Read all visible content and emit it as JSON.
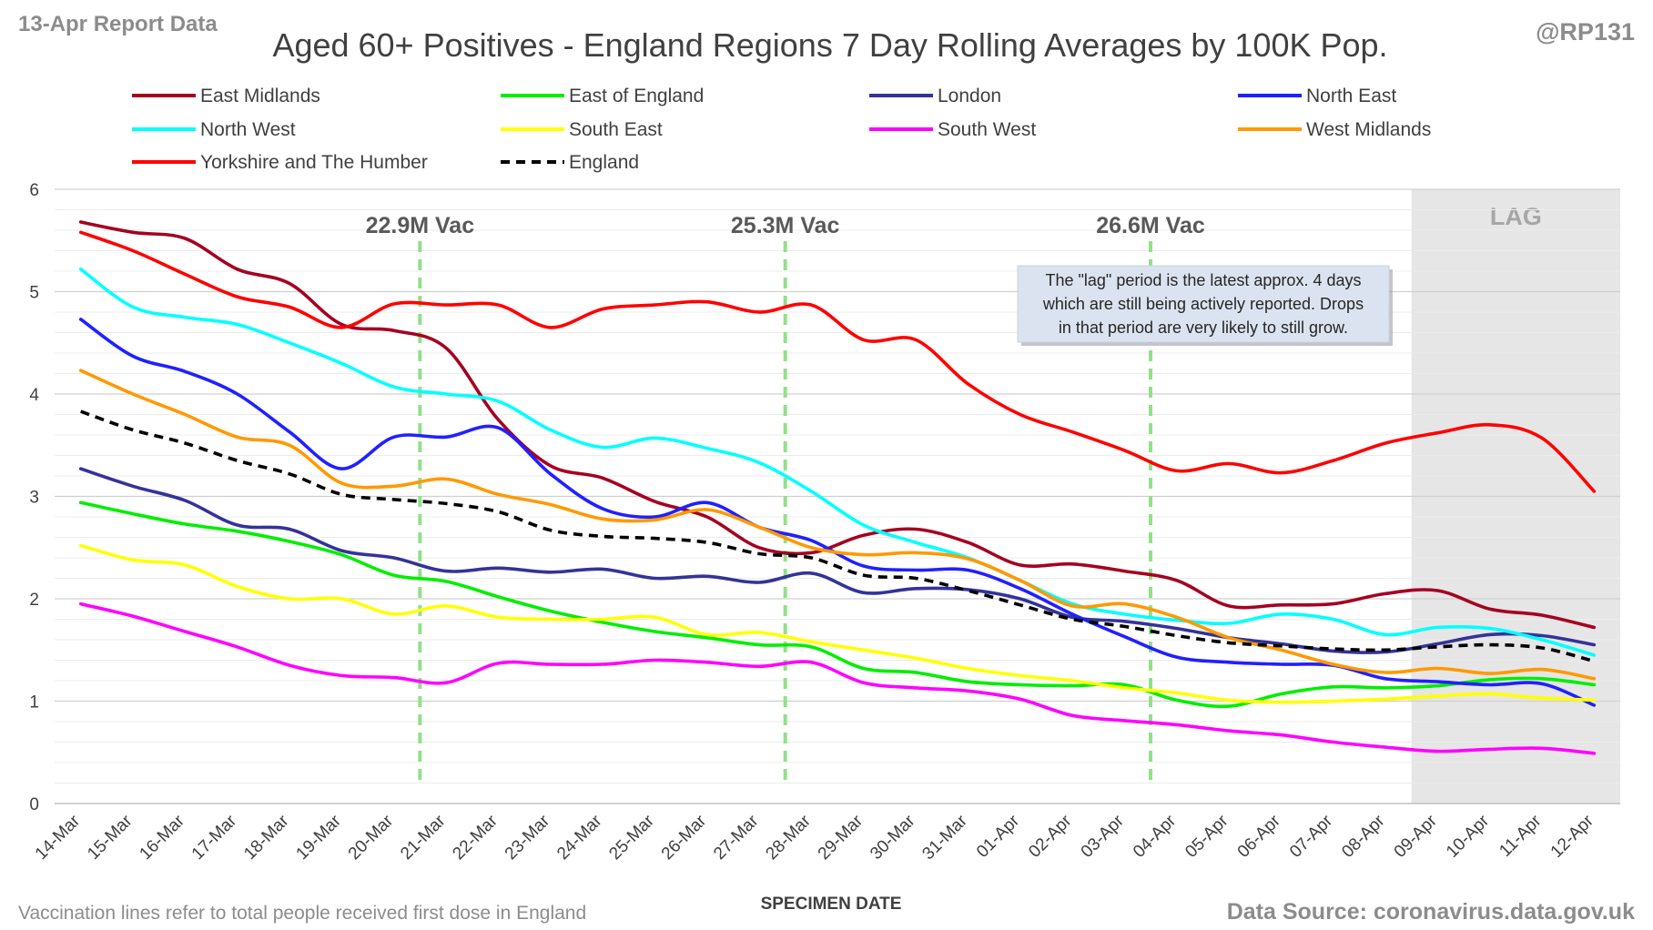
{
  "header": {
    "report_label": "13-Apr Report Data",
    "handle": "@RP131"
  },
  "footer": {
    "note": "Vaccination lines refer to total people received first dose in England",
    "source": "Data Source: coronavirus.data.gov.uk"
  },
  "chart_data": {
    "type": "line",
    "title": "Aged 60+ Positives - England Regions 7 Day Rolling Averages by 100K Pop.",
    "xlabel": "SPECIMEN DATE",
    "ylabel": "",
    "ylim": [
      0,
      6
    ],
    "yticks": [
      0,
      1,
      2,
      3,
      4,
      5,
      6
    ],
    "grid": true,
    "legend_position": "top",
    "categories": [
      "14-Mar",
      "15-Mar",
      "16-Mar",
      "17-Mar",
      "18-Mar",
      "19-Mar",
      "20-Mar",
      "21-Mar",
      "22-Mar",
      "23-Mar",
      "24-Mar",
      "25-Mar",
      "26-Mar",
      "27-Mar",
      "28-Mar",
      "29-Mar",
      "30-Mar",
      "31-Mar",
      "01-Apr",
      "02-Apr",
      "03-Apr",
      "04-Apr",
      "05-Apr",
      "06-Apr",
      "07-Apr",
      "08-Apr",
      "09-Apr",
      "10-Apr",
      "11-Apr",
      "12-Apr"
    ],
    "series": [
      {
        "name": "East Midlands",
        "color": "#a50021",
        "dash": false,
        "values": [
          5.68,
          5.58,
          5.52,
          5.22,
          5.08,
          4.68,
          4.62,
          4.45,
          3.75,
          3.3,
          3.18,
          2.95,
          2.8,
          2.5,
          2.45,
          2.62,
          2.68,
          2.55,
          2.33,
          2.34,
          2.27,
          2.18,
          1.93,
          1.94,
          1.95,
          2.05,
          2.08,
          1.9,
          1.84,
          1.72
        ]
      },
      {
        "name": "East of England",
        "color": "#00ee00",
        "dash": false,
        "values": [
          2.94,
          2.83,
          2.73,
          2.66,
          2.56,
          2.43,
          2.23,
          2.17,
          2.02,
          1.88,
          1.77,
          1.68,
          1.62,
          1.55,
          1.53,
          1.32,
          1.28,
          1.19,
          1.16,
          1.15,
          1.16,
          1.01,
          0.95,
          1.07,
          1.14,
          1.13,
          1.15,
          1.21,
          1.22,
          1.16
        ]
      },
      {
        "name": "London",
        "color": "#333399",
        "dash": false,
        "values": [
          3.27,
          3.1,
          2.96,
          2.72,
          2.68,
          2.47,
          2.4,
          2.27,
          2.3,
          2.26,
          2.29,
          2.2,
          2.22,
          2.16,
          2.25,
          2.06,
          2.1,
          2.09,
          2.0,
          1.82,
          1.78,
          1.71,
          1.62,
          1.56,
          1.49,
          1.48,
          1.56,
          1.65,
          1.64,
          1.55
        ]
      },
      {
        "name": "North East",
        "color": "#2020ff",
        "dash": false,
        "values": [
          4.73,
          4.37,
          4.22,
          4.0,
          3.63,
          3.27,
          3.58,
          3.58,
          3.67,
          3.22,
          2.88,
          2.8,
          2.94,
          2.7,
          2.57,
          2.32,
          2.28,
          2.28,
          2.1,
          1.85,
          1.63,
          1.43,
          1.38,
          1.36,
          1.35,
          1.22,
          1.19,
          1.16,
          1.17,
          0.96
        ]
      },
      {
        "name": "North West",
        "color": "#00ffff",
        "dash": false,
        "values": [
          5.22,
          4.85,
          4.75,
          4.68,
          4.5,
          4.3,
          4.07,
          4.0,
          3.93,
          3.65,
          3.48,
          3.57,
          3.47,
          3.33,
          3.05,
          2.72,
          2.55,
          2.4,
          2.18,
          1.95,
          1.85,
          1.79,
          1.76,
          1.85,
          1.8,
          1.65,
          1.72,
          1.71,
          1.6,
          1.45
        ]
      },
      {
        "name": "South East",
        "color": "#ffff00",
        "dash": false,
        "values": [
          2.52,
          2.38,
          2.33,
          2.12,
          2.0,
          2.0,
          1.85,
          1.93,
          1.82,
          1.8,
          1.8,
          1.82,
          1.65,
          1.67,
          1.58,
          1.5,
          1.42,
          1.32,
          1.25,
          1.2,
          1.13,
          1.08,
          1.01,
          0.99,
          1.0,
          1.02,
          1.05,
          1.07,
          1.03,
          1.01
        ]
      },
      {
        "name": "South West",
        "color": "#ff00ff",
        "dash": false,
        "values": [
          1.95,
          1.83,
          1.68,
          1.53,
          1.35,
          1.25,
          1.23,
          1.18,
          1.37,
          1.36,
          1.36,
          1.4,
          1.38,
          1.34,
          1.38,
          1.18,
          1.13,
          1.1,
          1.02,
          0.86,
          0.81,
          0.77,
          0.71,
          0.67,
          0.6,
          0.55,
          0.51,
          0.53,
          0.54,
          0.49
        ]
      },
      {
        "name": "West Midlands",
        "color": "#ff9900",
        "dash": false,
        "values": [
          4.23,
          4.0,
          3.8,
          3.58,
          3.5,
          3.13,
          3.1,
          3.17,
          3.02,
          2.92,
          2.78,
          2.77,
          2.87,
          2.7,
          2.5,
          2.43,
          2.45,
          2.39,
          2.18,
          1.93,
          1.95,
          1.82,
          1.62,
          1.5,
          1.36,
          1.28,
          1.32,
          1.27,
          1.31,
          1.22
        ]
      },
      {
        "name": "Yorkshire and The Humber",
        "color": "#ff0000",
        "dash": false,
        "values": [
          5.58,
          5.4,
          5.17,
          4.95,
          4.85,
          4.65,
          4.88,
          4.87,
          4.87,
          4.65,
          4.83,
          4.87,
          4.9,
          4.8,
          4.87,
          4.53,
          4.53,
          4.1,
          3.8,
          3.63,
          3.45,
          3.25,
          3.32,
          3.23,
          3.35,
          3.52,
          3.62,
          3.7,
          3.57,
          3.05
        ]
      },
      {
        "name": "England",
        "color": "#000000",
        "dash": true,
        "values": [
          3.83,
          3.65,
          3.52,
          3.35,
          3.22,
          3.02,
          2.97,
          2.93,
          2.85,
          2.67,
          2.61,
          2.59,
          2.55,
          2.44,
          2.4,
          2.23,
          2.2,
          2.08,
          1.94,
          1.8,
          1.73,
          1.64,
          1.57,
          1.54,
          1.51,
          1.5,
          1.53,
          1.55,
          1.52,
          1.39
        ]
      }
    ],
    "vaccination_markers": [
      {
        "position": 6.5,
        "label": "22.9M Vac"
      },
      {
        "position": 13.5,
        "label": "25.3M Vac"
      },
      {
        "position": 20.5,
        "label": "26.6M Vac"
      }
    ],
    "lag_region": {
      "start": 25.5,
      "end": 29.5,
      "label": "LAG"
    },
    "annotation_lines": [
      "The \"lag\" period is the latest approx. 4 days",
      "which are still being actively reported. Drops",
      "in that period are very likely to still grow."
    ]
  }
}
